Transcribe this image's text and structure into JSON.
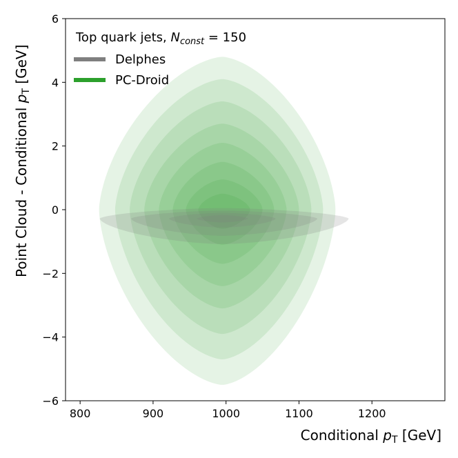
{
  "chart_data": {
    "type": "contour",
    "title": "",
    "xlabel": {
      "prefix": "Conditional ",
      "var": "p",
      "sub": "T",
      "suffix": " [GeV]"
    },
    "ylabel": {
      "prefix": "Point Cloud - Conditional ",
      "var": "p",
      "sub": "T",
      "suffix": " [GeV]"
    },
    "xlim": [
      780,
      1300
    ],
    "ylim": [
      -6,
      6
    ],
    "xticks": [
      800,
      900,
      1000,
      1100,
      1200
    ],
    "yticks": [
      -6,
      -4,
      -2,
      0,
      2,
      4,
      6
    ],
    "xtick_labels": [
      "800",
      "900",
      "1000",
      "1100",
      "1200"
    ],
    "ytick_labels": [
      "−6",
      "−4",
      "−2",
      "0",
      "2",
      "4",
      "6"
    ],
    "legend": {
      "position": "top-left",
      "title": {
        "text": "Top quark jets, ",
        "var": "N",
        "sub": "const",
        "eq": " = 150"
      },
      "entries": [
        {
          "label": "Delphes",
          "color": "#7f7f7f"
        },
        {
          "label": "PC-Droid",
          "color": "#2ca02c"
        }
      ]
    },
    "series": [
      {
        "name": "PC-Droid",
        "color": "#2ca02c",
        "fill_alpha": 0.12,
        "center": [
          995,
          0
        ],
        "levels": [
          {
            "x_left": 826,
            "x_right": 1150,
            "y_top": 4.8,
            "y_bottom": -5.5
          },
          {
            "x_left": 848,
            "x_right": 1133,
            "y_top": 4.1,
            "y_bottom": -4.7
          },
          {
            "x_left": 868,
            "x_right": 1117,
            "y_top": 3.4,
            "y_bottom": -3.9
          },
          {
            "x_left": 888,
            "x_right": 1100,
            "y_top": 2.7,
            "y_bottom": -3.1
          },
          {
            "x_left": 908,
            "x_right": 1083,
            "y_top": 2.1,
            "y_bottom": -2.4
          },
          {
            "x_left": 927,
            "x_right": 1066,
            "y_top": 1.5,
            "y_bottom": -1.7
          },
          {
            "x_left": 945,
            "x_right": 1050,
            "y_top": 0.95,
            "y_bottom": -1.1
          },
          {
            "x_left": 962,
            "x_right": 1033,
            "y_top": 0.5,
            "y_bottom": -0.6
          }
        ]
      },
      {
        "name": "Delphes",
        "color": "#7f7f7f",
        "fill_alpha": 0.2,
        "center": [
          995,
          -0.28
        ],
        "levels": [
          {
            "x_left": 827,
            "x_right": 1168,
            "y_top": 0.05,
            "y_bottom": -1.08
          },
          {
            "x_left": 870,
            "x_right": 1125,
            "y_top": -0.03,
            "y_bottom": -0.82
          },
          {
            "x_left": 922,
            "x_right": 1068,
            "y_top": -0.1,
            "y_bottom": -0.56
          },
          {
            "x_left": 960,
            "x_right": 1030,
            "y_top": -0.17,
            "y_bottom": -0.4
          }
        ]
      }
    ]
  }
}
